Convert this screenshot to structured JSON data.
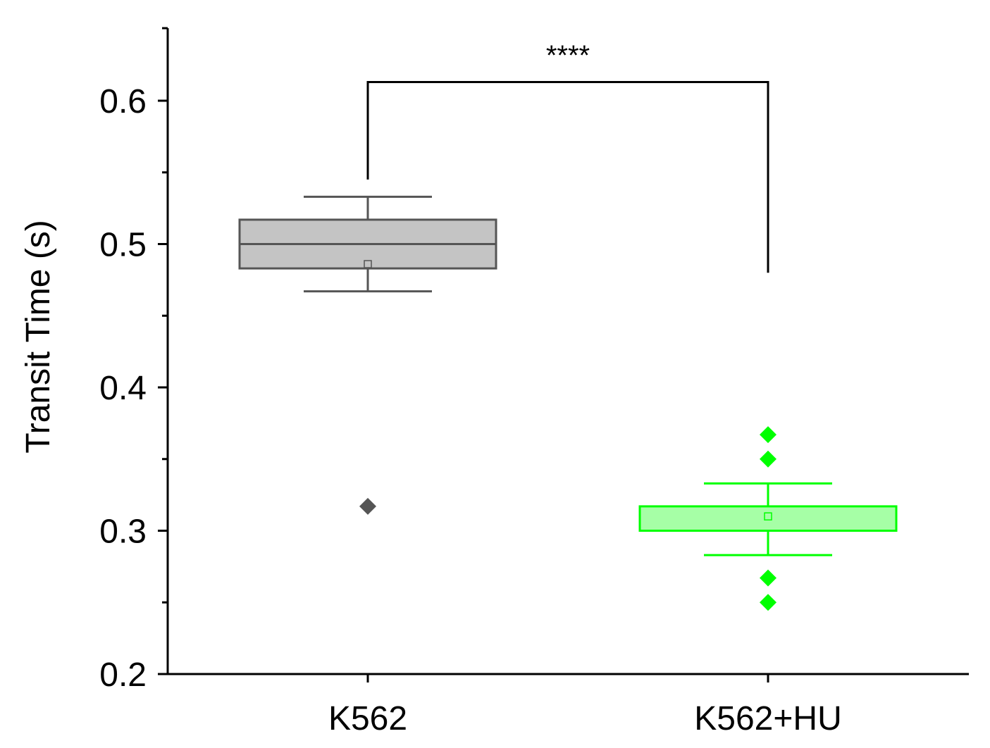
{
  "chart_data": {
    "type": "box",
    "title": "",
    "xlabel": "",
    "ylabel": "Transit Time (s)",
    "ylim": [
      0.2,
      0.65
    ],
    "yticks": [
      "0.2",
      "0.3",
      "0.4",
      "0.5",
      "0.6"
    ],
    "ytick_values": [
      0.2,
      0.3,
      0.4,
      0.5,
      0.6
    ],
    "yminor_values": [
      0.25,
      0.35,
      0.45,
      0.55
    ],
    "grid": false,
    "categories": [
      "K562",
      "K562+HU"
    ],
    "series": [
      {
        "category": "K562",
        "color": "#555555",
        "fill": "#c4c4c4",
        "whisker_low": 0.467,
        "q1": 0.483,
        "median": 0.5,
        "q3": 0.517,
        "whisker_high": 0.533,
        "mean": 0.486,
        "outliers": [
          0.317
        ]
      },
      {
        "category": "K562+HU",
        "color": "#00ff00",
        "fill": "#a6ffa6",
        "whisker_low": 0.283,
        "q1": 0.3,
        "median": 0.3,
        "q3": 0.317,
        "whisker_high": 0.333,
        "mean": 0.31,
        "outliers": [
          0.367,
          0.35,
          0.267,
          0.25
        ]
      }
    ],
    "significance": {
      "label": "****",
      "from": "K562",
      "to": "K562+HU",
      "bar_y": 0.613,
      "left_end": 0.545,
      "right_end": 0.48
    }
  }
}
